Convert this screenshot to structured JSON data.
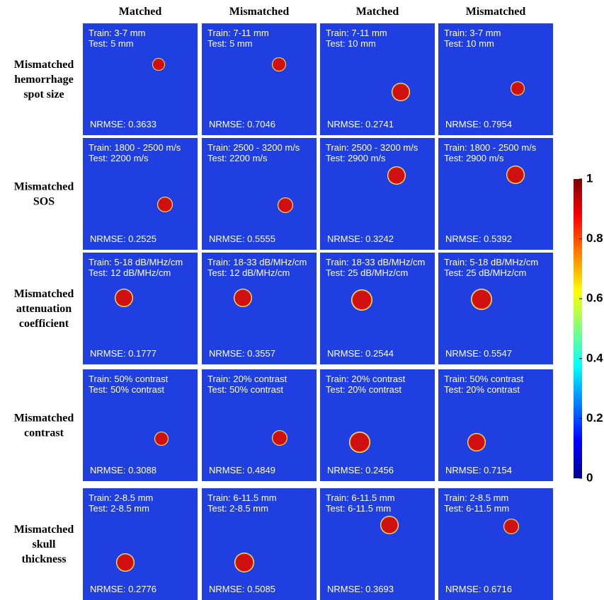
{
  "column_headers": [
    "Matched",
    "Mismatched",
    "Matched",
    "Mismatched"
  ],
  "rows": [
    {
      "label": [
        "Mismatched",
        "hemorrhage",
        "spot size"
      ],
      "cells": [
        {
          "train": "Train: 3-7 mm",
          "test": "Test: 5 mm",
          "nrmse": "NRMSE: 0.3633"
        },
        {
          "train": "Train: 7-11 mm",
          "test": "Test: 5 mm",
          "nrmse": "NRMSE: 0.7046"
        },
        {
          "train": "Train: 7-11 mm",
          "test": "Test: 10 mm",
          "nrmse": "NRMSE: 0.2741"
        },
        {
          "train": "Train: 3-7 mm",
          "test": "Test: 10 mm",
          "nrmse": "NRMSE: 0.7954"
        }
      ]
    },
    {
      "label": [
        "Mismatched",
        "SOS"
      ],
      "cells": [
        {
          "train": "Train: 1800 - 2500 m/s",
          "test": "Test: 2200 m/s",
          "nrmse": "NRMSE: 0.2525"
        },
        {
          "train": "Train: 2500 - 3200 m/s",
          "test": "Test: 2200 m/s",
          "nrmse": "NRMSE: 0.5555"
        },
        {
          "train": "Train: 2500 - 3200 m/s",
          "test": "Test: 2900 m/s",
          "nrmse": "NRMSE: 0.3242"
        },
        {
          "train": "Train: 1800 - 2500 m/s",
          "test": "Test: 2900 m/s",
          "nrmse": "NRMSE: 0.5392"
        }
      ]
    },
    {
      "label": [
        "Mismatched",
        "attenuation",
        "coefficient"
      ],
      "cells": [
        {
          "train": "Train: 5-18 dB/MHz/cm",
          "test": "Test: 12 dB/MHz/cm",
          "nrmse": "NRMSE: 0.1777"
        },
        {
          "train": "Train: 18-33 dB/MHz/cm",
          "test": "Test: 12 dB/MHz/cm",
          "nrmse": "NRMSE: 0.3557"
        },
        {
          "train": "Train: 18-33 dB/MHz/cm",
          "test": "Test: 25 dB/MHz/cm",
          "nrmse": "NRMSE: 0.2544"
        },
        {
          "train": "Train: 5-18 dB/MHz/cm",
          "test": "Test: 25 dB/MHz/cm",
          "nrmse": "NRMSE: 0.5547"
        }
      ]
    },
    {
      "label": [
        "Mismatched",
        "contrast"
      ],
      "cells": [
        {
          "train": "Train: 50% contrast",
          "test": "Test: 50% contrast",
          "nrmse": "NRMSE: 0.3088"
        },
        {
          "train": "Train: 20% contrast",
          "test": "Test: 50% contrast",
          "nrmse": "NRMSE: 0.4849"
        },
        {
          "train": "Train: 20% contrast",
          "test": "Test: 20% contrast",
          "nrmse": "NRMSE: 0.2456"
        },
        {
          "train": "Train: 50% contrast",
          "test": "Test: 20% contrast",
          "nrmse": "NRMSE: 0.7154"
        }
      ]
    },
    {
      "label": [
        "Mismatched",
        "skull",
        "thickness"
      ],
      "cells": [
        {
          "train": "Train: 2-8.5 mm",
          "test": "Test: 2-8.5 mm",
          "nrmse": "NRMSE: 0.2776"
        },
        {
          "train": "Train: 6-11.5 mm",
          "test": "Test:  2-8.5 mm",
          "nrmse": "NRMSE: 0.5085"
        },
        {
          "train": "Train: 6-11.5 mm",
          "test": "Test:  6-11.5 mm",
          "nrmse": "NRMSE: 0.3693"
        },
        {
          "train": "Train: 2-8.5 mm",
          "test": "Test:  6-11.5 mm",
          "nrmse": "NRMSE: 0.6716"
        }
      ]
    }
  ],
  "colorbar": {
    "lim": [
      0,
      1
    ],
    "ticks": [
      0,
      0.2,
      0.4,
      0.6,
      0.8,
      1
    ]
  }
}
